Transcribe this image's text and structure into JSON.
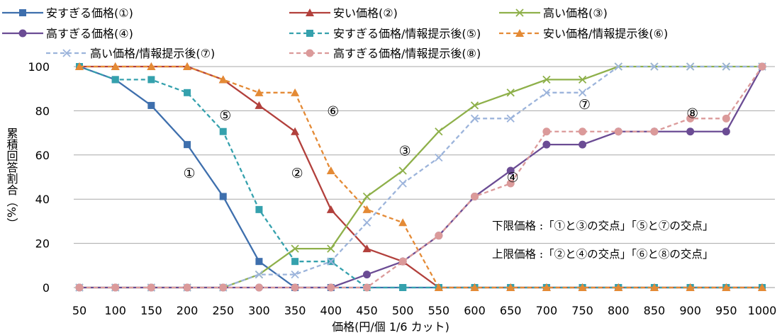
{
  "chart_data": {
    "type": "line",
    "xlabel": "価格(円/個 1/6 カット)",
    "ylabel": "累積回答割合（%）",
    "ylim": [
      0,
      100
    ],
    "yticks": [
      0,
      20,
      40,
      60,
      80,
      100
    ],
    "grid": true,
    "legend_position": "top",
    "categories": [
      "50",
      "100",
      "150",
      "200",
      "250",
      "300",
      "350",
      "400",
      "450",
      "500",
      "550",
      "600",
      "650",
      "700",
      "750",
      "800",
      "850",
      "900",
      "950",
      "1000"
    ],
    "series": [
      {
        "name": "安すぎる価格(①)",
        "color": "#3e6fad",
        "dash": "solid",
        "marker": "square",
        "values": [
          100,
          94.1,
          82.4,
          64.7,
          41.2,
          11.8,
          0,
          0,
          0,
          0,
          0,
          0,
          0,
          0,
          0,
          0,
          0,
          0,
          0,
          0
        ]
      },
      {
        "name": "安い価格(②)",
        "color": "#b2403c",
        "dash": "solid",
        "marker": "triangle",
        "values": [
          100,
          100,
          100,
          100,
          94.1,
          82.4,
          70.6,
          35.3,
          17.6,
          11.8,
          0,
          0,
          0,
          0,
          0,
          0,
          0,
          0,
          0,
          0
        ]
      },
      {
        "name": "高い価格(③)",
        "color": "#8eb04a",
        "dash": "solid",
        "marker": "x",
        "values": [
          0,
          0,
          0,
          0,
          0,
          5.9,
          17.6,
          17.6,
          41.2,
          52.9,
          70.6,
          82.4,
          88.2,
          94.1,
          94.1,
          100,
          100,
          100,
          100,
          100
        ]
      },
      {
        "name": "高すぎる価格(④)",
        "color": "#6b4c94",
        "dash": "solid",
        "marker": "circle",
        "values": [
          0,
          0,
          0,
          0,
          0,
          0,
          0,
          0,
          5.9,
          11.8,
          23.5,
          41.2,
          52.9,
          64.7,
          64.7,
          70.6,
          70.6,
          70.6,
          70.6,
          100
        ]
      },
      {
        "name": "安すぎる価格/情報提示後(⑤)",
        "color": "#35a1ad",
        "dash": "dashed",
        "marker": "square",
        "values": [
          100,
          94.1,
          94.1,
          88.2,
          70.6,
          35.3,
          11.8,
          11.8,
          0,
          0,
          0,
          0,
          0,
          0,
          0,
          0,
          0,
          0,
          0,
          0
        ]
      },
      {
        "name": "安い価格/情報提示後(⑥)",
        "color": "#e48a35",
        "dash": "dashed",
        "marker": "triangle",
        "values": [
          100,
          100,
          100,
          100,
          94.1,
          88.2,
          88.2,
          52.9,
          35.3,
          29.4,
          0,
          0,
          0,
          0,
          0,
          0,
          0,
          0,
          0,
          0
        ]
      },
      {
        "name": "高い価格/情報提示後(⑦)",
        "color": "#9cb4db",
        "dash": "dashed",
        "marker": "x",
        "values": [
          0,
          0,
          0,
          0,
          0,
          5.9,
          5.9,
          11.8,
          29.4,
          47.1,
          58.8,
          76.5,
          76.5,
          88.2,
          88.2,
          100,
          100,
          100,
          100,
          100
        ]
      },
      {
        "name": "高すぎる価格/情報提示後(⑧)",
        "color": "#db9a9a",
        "dash": "dashed",
        "marker": "circle",
        "values": [
          0,
          0,
          0,
          0,
          0,
          0,
          0,
          0,
          0,
          11.8,
          23.5,
          41.2,
          47.1,
          70.6,
          70.6,
          70.6,
          70.6,
          76.5,
          76.5,
          100
        ]
      }
    ],
    "annotations": [
      {
        "text": "①",
        "x": "200",
        "y": 52
      },
      {
        "text": "②",
        "x": "350",
        "y": 52
      },
      {
        "text": "③",
        "x": "500",
        "y": 62
      },
      {
        "text": "④",
        "x": "650",
        "y": 50
      },
      {
        "text": "⑤",
        "x": "250",
        "y": 78
      },
      {
        "text": "⑥",
        "x": "400",
        "y": 80
      },
      {
        "text": "⑦",
        "x": "750",
        "y": 83
      },
      {
        "text": "⑧",
        "x": "900",
        "y": 79
      }
    ],
    "notes": [
      "下限価格 :「①と③の交点」「⑤と⑦の交点」",
      "上限価格 :「②と④の交点」「⑥と⑧の交点」"
    ]
  }
}
